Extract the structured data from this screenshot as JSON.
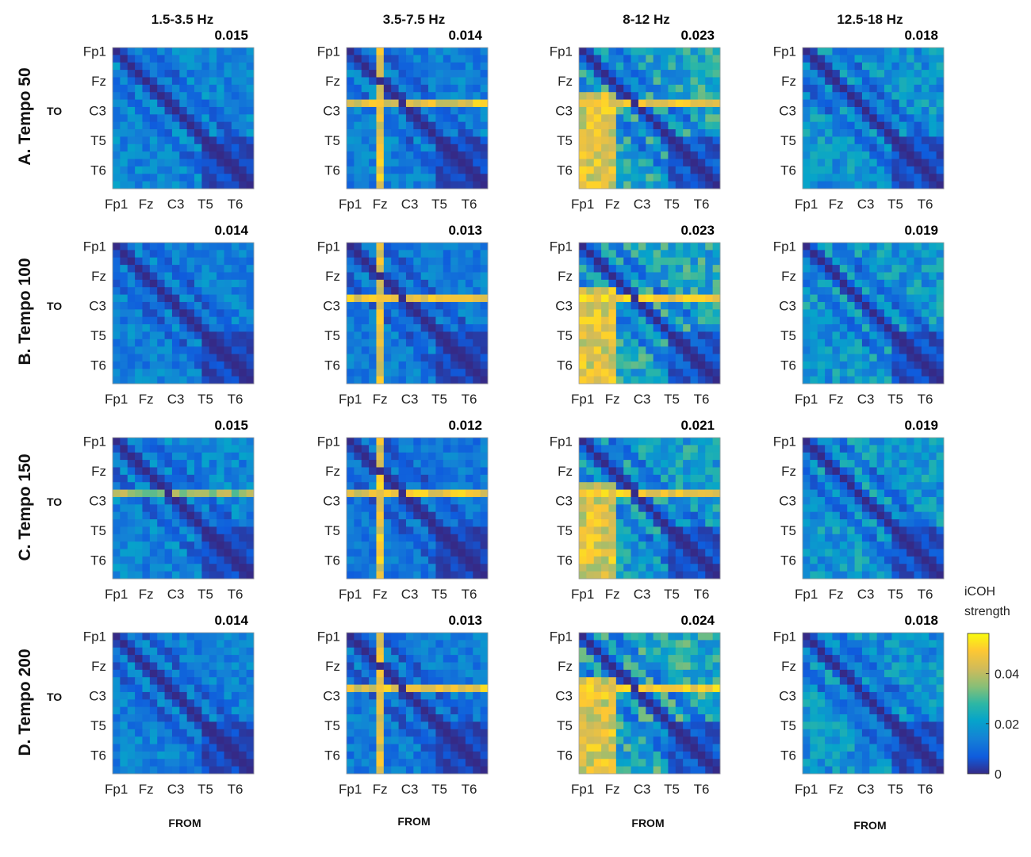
{
  "chart_data": {
    "type": "heatmap",
    "colorbar": {
      "label_line1": "iCOH",
      "label_line2": "strength",
      "range": [
        0,
        0.056
      ],
      "ticks": [
        0,
        0.02,
        0.04
      ],
      "tick_labels": [
        "0",
        "0.02",
        "0.04"
      ],
      "colormap": "parula"
    },
    "frequency_bands": [
      "1.5-3.5 Hz",
      "3.5-7.5 Hz",
      "8-12 Hz",
      "12.5-18 Hz"
    ],
    "conditions": [
      "A. Tempo 50",
      "B. Tempo 100",
      "C. Tempo 150",
      "D. Tempo 200"
    ],
    "y_axis_label": "TO",
    "x_axis_label": "FROM",
    "channel_tick_labels": [
      "Fp1",
      "Fz",
      "C3",
      "T5",
      "T6"
    ],
    "matrix_size": 19,
    "mean_strength": [
      [
        "0.015",
        "0.014",
        "0.023",
        "0.018"
      ],
      [
        "0.014",
        "0.013",
        "0.023",
        "0.019"
      ],
      [
        "0.015",
        "0.012",
        "0.021",
        "0.019"
      ],
      [
        "0.014",
        "0.013",
        "0.024",
        "0.018"
      ]
    ]
  }
}
